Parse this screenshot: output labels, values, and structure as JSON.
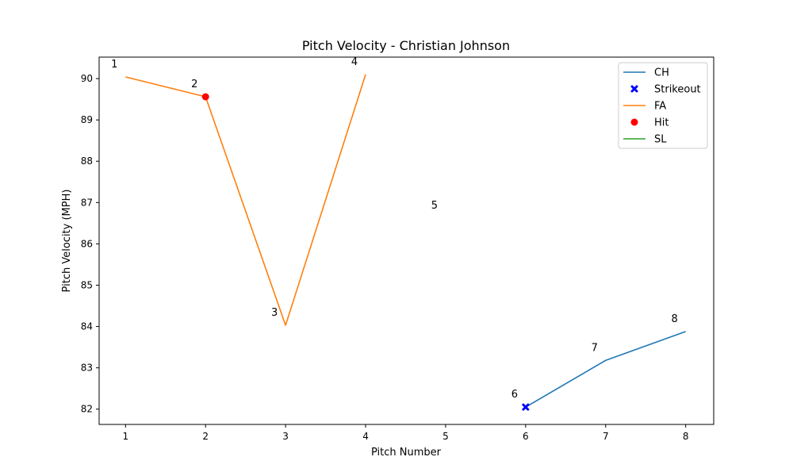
{
  "chart_data": {
    "type": "line",
    "title": "Pitch Velocity - Christian Johnson",
    "xlabel": "Pitch Number",
    "ylabel": "Pitch Velocity (MPH)",
    "xlim": [
      0.67,
      8.35
    ],
    "ylim": [
      81.63,
      90.52
    ],
    "x_ticks": [
      1,
      2,
      3,
      4,
      5,
      6,
      7,
      8
    ],
    "y_ticks": [
      82,
      83,
      84,
      85,
      86,
      87,
      88,
      89,
      90
    ],
    "grid": false,
    "legend_position": "top-right",
    "series": [
      {
        "name": "CH",
        "color": "#1f77b4",
        "x": [
          6,
          7,
          8
        ],
        "y": [
          82.05,
          83.18,
          83.88
        ]
      },
      {
        "name": "FA",
        "color": "#ff7f0e",
        "x": [
          1,
          2,
          3,
          4
        ],
        "y": [
          90.04,
          89.56,
          84.03,
          90.1
        ]
      },
      {
        "name": "SL",
        "color": "#2ca02c",
        "x": [
          5
        ],
        "y": [
          86.62
        ]
      }
    ],
    "markers": [
      {
        "name": "Strikeout",
        "marker": "x",
        "color": "#0000ff",
        "x": [
          6
        ],
        "y": [
          82.05
        ]
      },
      {
        "name": "Hit",
        "marker": "o",
        "color": "#ff0000",
        "x": [
          2
        ],
        "y": [
          89.56
        ]
      }
    ],
    "pitch_labels": [
      {
        "text": "1",
        "x": 1,
        "y": 90.04
      },
      {
        "text": "2",
        "x": 2,
        "y": 89.56
      },
      {
        "text": "3",
        "x": 3,
        "y": 84.03
      },
      {
        "text": "4",
        "x": 4,
        "y": 90.1
      },
      {
        "text": "5",
        "x": 5,
        "y": 86.62
      },
      {
        "text": "6",
        "x": 6,
        "y": 82.05
      },
      {
        "text": "7",
        "x": 7,
        "y": 83.18
      },
      {
        "text": "8",
        "x": 8,
        "y": 83.88
      }
    ],
    "legend": [
      {
        "label": "CH",
        "kind": "line",
        "color": "#1f77b4"
      },
      {
        "label": "Strikeout",
        "kind": "x",
        "color": "#0000ff"
      },
      {
        "label": "FA",
        "kind": "line",
        "color": "#ff7f0e"
      },
      {
        "label": "Hit",
        "kind": "o",
        "color": "#ff0000"
      },
      {
        "label": "SL",
        "kind": "line",
        "color": "#2ca02c"
      }
    ]
  }
}
